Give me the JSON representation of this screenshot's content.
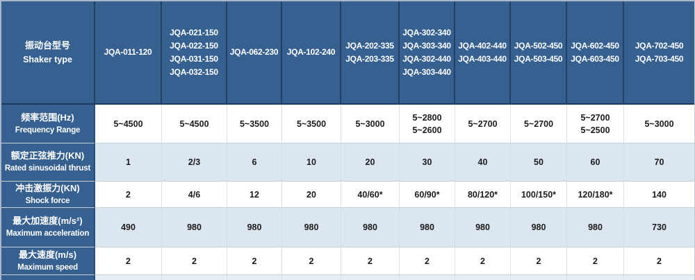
{
  "table": {
    "header": {
      "label_zh": "振动台型号",
      "label_en": "Shaker type",
      "columns": [
        [
          "JQA-011-120"
        ],
        [
          "JQA-021-150",
          "JQA-022-150",
          "JQA-031-150",
          "JQA-032-150"
        ],
        [
          "JQA-062-230"
        ],
        [
          "JQA-102-240"
        ],
        [
          "JQA-202-335",
          "JQA-203-335"
        ],
        [
          "JQA-302-340",
          "JQA-303-340",
          "JQA-302-440",
          "JQA-303-440"
        ],
        [
          "JQA-402-440",
          "JQA-403-440"
        ],
        [
          "JQA-502-450",
          "JQA-503-450"
        ],
        [
          "JQA-602-450",
          "JQA-603-450"
        ],
        [
          "JQA-702-450",
          "JQA-703-450"
        ]
      ]
    },
    "rows": [
      {
        "label_zh": "频率范围(Hz)",
        "label_en": "Frequency Range",
        "values": [
          [
            "5~4500"
          ],
          [
            "5~4500"
          ],
          [
            "5~3500"
          ],
          [
            "5~3500"
          ],
          [
            "5~3000"
          ],
          [
            "5~2800",
            "5~2600"
          ],
          [
            "5~2700"
          ],
          [
            "5~2700"
          ],
          [
            "5~2700",
            "5~2500"
          ],
          [
            "5~3000"
          ]
        ]
      },
      {
        "label_zh": "额定正弦推力(KN)",
        "label_en": "Rated sinusoidal thrust",
        "values": [
          [
            "1"
          ],
          [
            "2/3"
          ],
          [
            "6"
          ],
          [
            "10"
          ],
          [
            "20"
          ],
          [
            "30"
          ],
          [
            "40"
          ],
          [
            "50"
          ],
          [
            "60"
          ],
          [
            "70"
          ]
        ]
      },
      {
        "label_zh": "冲击激振力(KN)",
        "label_en": "Shock force",
        "values": [
          [
            "2"
          ],
          [
            "4/6"
          ],
          [
            "12"
          ],
          [
            "20"
          ],
          [
            "40/60*"
          ],
          [
            "60/90*"
          ],
          [
            "80/120*"
          ],
          [
            "100/150*"
          ],
          [
            "120/180*"
          ],
          [
            "140"
          ]
        ]
      },
      {
        "label_zh": "最大加速度(m/s²)",
        "label_en": "Maximum acceleration",
        "values": [
          [
            "490"
          ],
          [
            "980"
          ],
          [
            "980"
          ],
          [
            "980"
          ],
          [
            "980"
          ],
          [
            "980"
          ],
          [
            "980"
          ],
          [
            "980"
          ],
          [
            "980"
          ],
          [
            "730"
          ]
        ]
      },
      {
        "label_zh": "最大速度(m/s)",
        "label_en": "Maximum speed",
        "values": [
          [
            "2"
          ],
          [
            "2"
          ],
          [
            "2"
          ],
          [
            "2"
          ],
          [
            "2"
          ],
          [
            "2"
          ],
          [
            "2"
          ],
          [
            "2"
          ],
          [
            "2"
          ],
          [
            "2"
          ]
        ]
      }
    ]
  },
  "colors": {
    "header_blue": "#35608F",
    "header_rule_dark": "#1B3A62",
    "header_divider": "#223F66",
    "alt_row_blue": "#DCE6F1",
    "row_white": "#FFFFFF",
    "grid_line": "#D9DEE6",
    "row_line": "#C9D0D9",
    "partial_row_tint": "#E7EDF5",
    "text_dark": "#1B1B1B",
    "text_light": "#FFFFFF"
  }
}
